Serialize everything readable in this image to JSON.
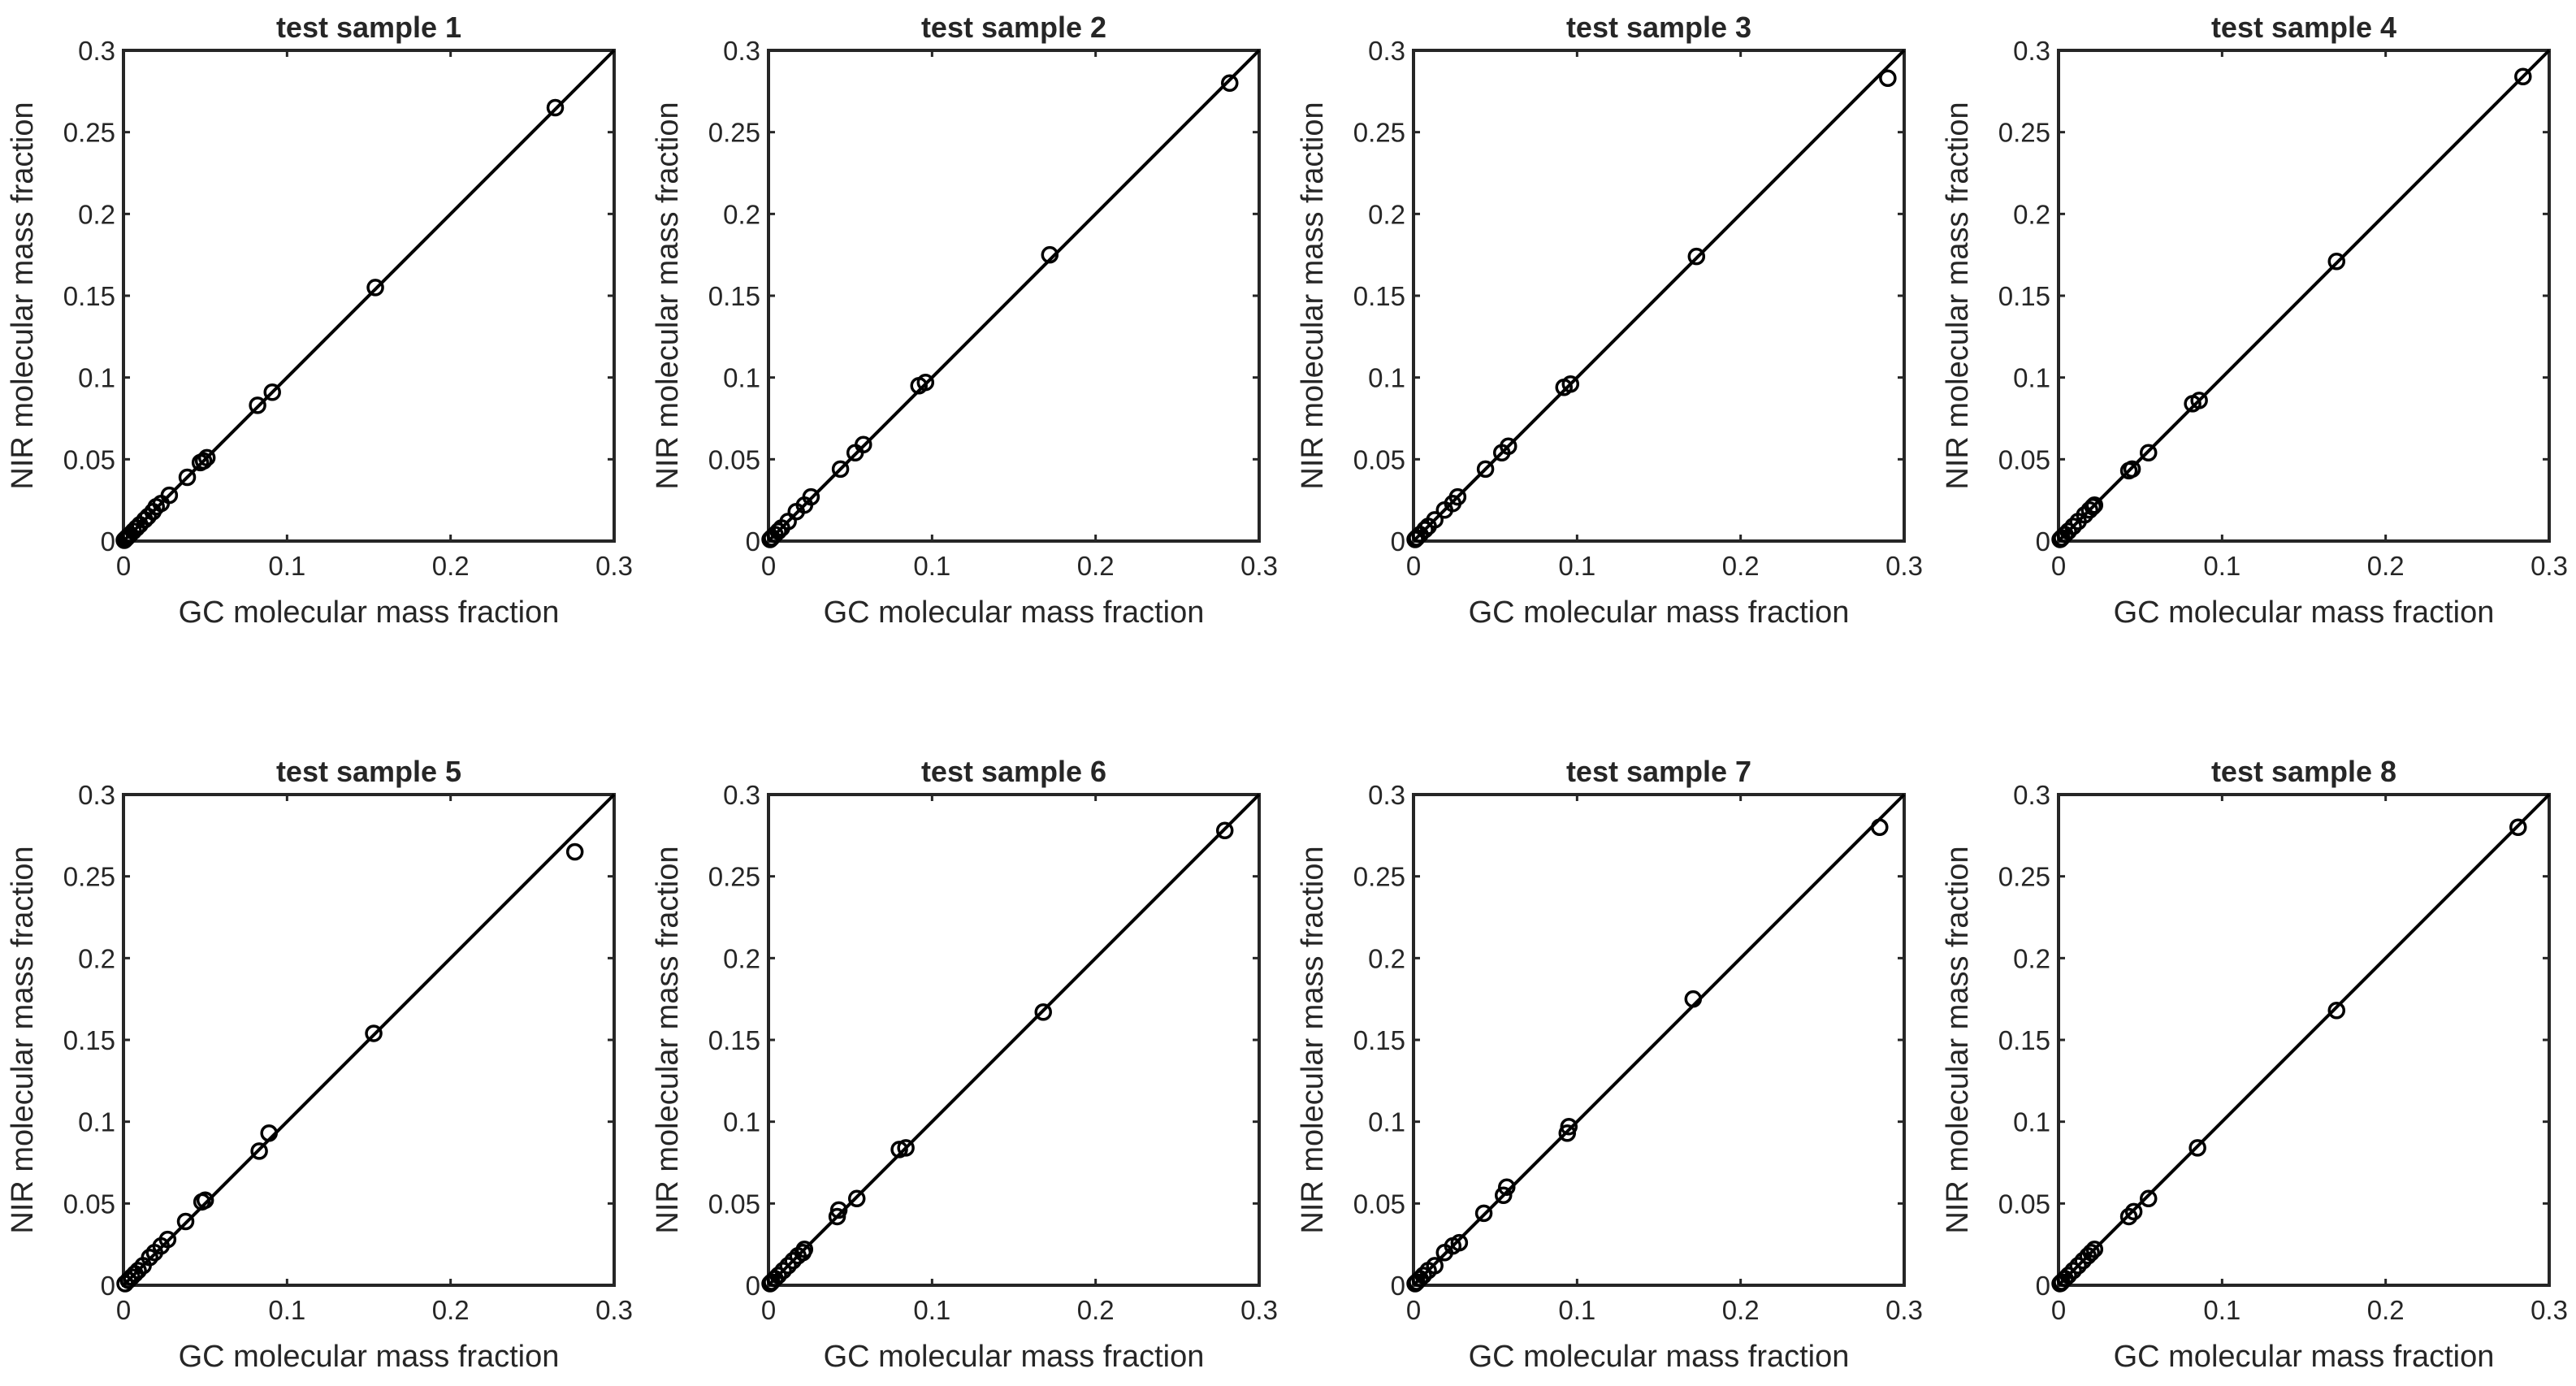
{
  "chart_data": [
    {
      "type": "scatter",
      "title": "test sample 1",
      "xlabel": "GC molecular mass fraction",
      "ylabel": "NIR molecular mass fraction",
      "xlim": [
        0,
        0.3
      ],
      "ylim": [
        0,
        0.3
      ],
      "xticks": [
        "0",
        "0.1",
        "0.2",
        "0.3"
      ],
      "yticks": [
        "0",
        "0.05",
        "0.1",
        "0.15",
        "0.2",
        "0.25",
        "0.3"
      ],
      "reference_line": {
        "x": [
          0,
          0.3
        ],
        "y": [
          0,
          0.3
        ]
      },
      "points": [
        [
          0.264,
          0.265
        ],
        [
          0.154,
          0.155
        ],
        [
          0.091,
          0.091
        ],
        [
          0.082,
          0.083
        ],
        [
          0.051,
          0.051
        ],
        [
          0.049,
          0.049
        ],
        [
          0.047,
          0.048
        ],
        [
          0.039,
          0.039
        ],
        [
          0.028,
          0.028
        ],
        [
          0.023,
          0.023
        ],
        [
          0.02,
          0.021
        ],
        [
          0.018,
          0.018
        ],
        [
          0.015,
          0.015
        ],
        [
          0.013,
          0.013
        ],
        [
          0.01,
          0.01
        ],
        [
          0.008,
          0.008
        ],
        [
          0.006,
          0.006
        ],
        [
          0.004,
          0.004
        ],
        [
          0.003,
          0.003
        ],
        [
          0.002,
          0.002
        ],
        [
          0.001,
          0.001
        ],
        [
          0.0005,
          0.0005
        ]
      ]
    },
    {
      "type": "scatter",
      "title": "test sample 2",
      "xlabel": "GC molecular mass fraction",
      "ylabel": "NIR molecular mass fraction",
      "xlim": [
        0,
        0.3
      ],
      "ylim": [
        0,
        0.3
      ],
      "xticks": [
        "0",
        "0.1",
        "0.2",
        "0.3"
      ],
      "yticks": [
        "0",
        "0.05",
        "0.1",
        "0.15",
        "0.2",
        "0.25",
        "0.3"
      ],
      "reference_line": {
        "x": [
          0,
          0.3
        ],
        "y": [
          0,
          0.3
        ]
      },
      "points": [
        [
          0.282,
          0.28
        ],
        [
          0.172,
          0.175
        ],
        [
          0.096,
          0.097
        ],
        [
          0.092,
          0.095
        ],
        [
          0.058,
          0.059
        ],
        [
          0.053,
          0.054
        ],
        [
          0.044,
          0.044
        ],
        [
          0.026,
          0.027
        ],
        [
          0.022,
          0.022
        ],
        [
          0.017,
          0.018
        ],
        [
          0.012,
          0.012
        ],
        [
          0.008,
          0.008
        ],
        [
          0.006,
          0.006
        ],
        [
          0.004,
          0.004
        ],
        [
          0.002,
          0.002
        ],
        [
          0.001,
          0.001
        ]
      ]
    },
    {
      "type": "scatter",
      "title": "test sample 3",
      "xlabel": "GC molecular mass fraction",
      "ylabel": "NIR molecular mass fraction",
      "xlim": [
        0,
        0.3
      ],
      "ylim": [
        0,
        0.3
      ],
      "xticks": [
        "0",
        "0.1",
        "0.2",
        "0.3"
      ],
      "yticks": [
        "0",
        "0.05",
        "0.1",
        "0.15",
        "0.2",
        "0.25",
        "0.3"
      ],
      "reference_line": {
        "x": [
          0,
          0.3
        ],
        "y": [
          0,
          0.3
        ]
      },
      "points": [
        [
          0.29,
          0.283
        ],
        [
          0.173,
          0.174
        ],
        [
          0.096,
          0.096
        ],
        [
          0.092,
          0.094
        ],
        [
          0.058,
          0.058
        ],
        [
          0.054,
          0.054
        ],
        [
          0.044,
          0.044
        ],
        [
          0.027,
          0.027
        ],
        [
          0.024,
          0.023
        ],
        [
          0.019,
          0.019
        ],
        [
          0.013,
          0.013
        ],
        [
          0.009,
          0.009
        ],
        [
          0.007,
          0.007
        ],
        [
          0.004,
          0.004
        ],
        [
          0.002,
          0.002
        ],
        [
          0.001,
          0.001
        ]
      ]
    },
    {
      "type": "scatter",
      "title": "test sample 4",
      "xlabel": "GC molecular mass fraction",
      "ylabel": "NIR molecular mass fraction",
      "xlim": [
        0,
        0.3
      ],
      "ylim": [
        0,
        0.3
      ],
      "xticks": [
        "0",
        "0.1",
        "0.2",
        "0.3"
      ],
      "yticks": [
        "0",
        "0.05",
        "0.1",
        "0.15",
        "0.2",
        "0.25",
        "0.3"
      ],
      "reference_line": {
        "x": [
          0,
          0.3
        ],
        "y": [
          0,
          0.3
        ]
      },
      "points": [
        [
          0.284,
          0.284
        ],
        [
          0.17,
          0.171
        ],
        [
          0.086,
          0.086
        ],
        [
          0.082,
          0.084
        ],
        [
          0.055,
          0.054
        ],
        [
          0.045,
          0.044
        ],
        [
          0.043,
          0.043
        ],
        [
          0.022,
          0.022
        ],
        [
          0.021,
          0.021
        ],
        [
          0.019,
          0.019
        ],
        [
          0.016,
          0.016
        ],
        [
          0.012,
          0.012
        ],
        [
          0.009,
          0.009
        ],
        [
          0.006,
          0.006
        ],
        [
          0.004,
          0.004
        ],
        [
          0.002,
          0.002
        ],
        [
          0.001,
          0.001
        ]
      ]
    },
    {
      "type": "scatter",
      "title": "test sample 5",
      "xlabel": "GC molecular mass fraction",
      "ylabel": "NIR molecular mass fraction",
      "xlim": [
        0,
        0.3
      ],
      "ylim": [
        0,
        0.3
      ],
      "xticks": [
        "0",
        "0.1",
        "0.2",
        "0.3"
      ],
      "yticks": [
        "0",
        "0.05",
        "0.1",
        "0.15",
        "0.2",
        "0.25",
        "0.3"
      ],
      "reference_line": {
        "x": [
          0,
          0.3
        ],
        "y": [
          0,
          0.3
        ]
      },
      "points": [
        [
          0.276,
          0.265
        ],
        [
          0.153,
          0.154
        ],
        [
          0.089,
          0.093
        ],
        [
          0.083,
          0.082
        ],
        [
          0.05,
          0.052
        ],
        [
          0.048,
          0.051
        ],
        [
          0.038,
          0.039
        ],
        [
          0.027,
          0.028
        ],
        [
          0.023,
          0.024
        ],
        [
          0.019,
          0.02
        ],
        [
          0.016,
          0.017
        ],
        [
          0.012,
          0.012
        ],
        [
          0.009,
          0.009
        ],
        [
          0.007,
          0.007
        ],
        [
          0.005,
          0.005
        ],
        [
          0.003,
          0.003
        ],
        [
          0.001,
          0.001
        ]
      ]
    },
    {
      "type": "scatter",
      "title": "test sample 6",
      "xlabel": "GC molecular mass fraction",
      "ylabel": "NIR molecular mass fraction",
      "xlim": [
        0,
        0.3
      ],
      "ylim": [
        0,
        0.3
      ],
      "xticks": [
        "0",
        "0.1",
        "0.2",
        "0.3"
      ],
      "yticks": [
        "0",
        "0.05",
        "0.1",
        "0.15",
        "0.2",
        "0.25",
        "0.3"
      ],
      "reference_line": {
        "x": [
          0,
          0.3
        ],
        "y": [
          0,
          0.3
        ]
      },
      "points": [
        [
          0.279,
          0.278
        ],
        [
          0.168,
          0.167
        ],
        [
          0.084,
          0.084
        ],
        [
          0.08,
          0.083
        ],
        [
          0.054,
          0.053
        ],
        [
          0.043,
          0.046
        ],
        [
          0.042,
          0.042
        ],
        [
          0.022,
          0.022
        ],
        [
          0.021,
          0.02
        ],
        [
          0.018,
          0.018
        ],
        [
          0.015,
          0.015
        ],
        [
          0.012,
          0.012
        ],
        [
          0.009,
          0.009
        ],
        [
          0.006,
          0.006
        ],
        [
          0.004,
          0.004
        ],
        [
          0.002,
          0.002
        ],
        [
          0.001,
          0.001
        ]
      ]
    },
    {
      "type": "scatter",
      "title": "test sample 7",
      "xlabel": "GC molecular mass fraction",
      "ylabel": "NIR molecular mass fraction",
      "xlim": [
        0,
        0.3
      ],
      "ylim": [
        0,
        0.3
      ],
      "xticks": [
        "0",
        "0.1",
        "0.2",
        "0.3"
      ],
      "yticks": [
        "0",
        "0.05",
        "0.1",
        "0.15",
        "0.2",
        "0.25",
        "0.3"
      ],
      "reference_line": {
        "x": [
          0,
          0.3
        ],
        "y": [
          0,
          0.3
        ]
      },
      "points": [
        [
          0.285,
          0.28
        ],
        [
          0.171,
          0.175
        ],
        [
          0.095,
          0.097
        ],
        [
          0.094,
          0.093
        ],
        [
          0.057,
          0.06
        ],
        [
          0.055,
          0.055
        ],
        [
          0.043,
          0.044
        ],
        [
          0.028,
          0.026
        ],
        [
          0.024,
          0.024
        ],
        [
          0.019,
          0.02
        ],
        [
          0.013,
          0.012
        ],
        [
          0.009,
          0.009
        ],
        [
          0.006,
          0.006
        ],
        [
          0.004,
          0.004
        ],
        [
          0.002,
          0.002
        ],
        [
          0.001,
          0.001
        ]
      ]
    },
    {
      "type": "scatter",
      "title": "test sample 8",
      "xlabel": "GC molecular mass fraction",
      "ylabel": "NIR molecular mass fraction",
      "xlim": [
        0,
        0.3
      ],
      "ylim": [
        0,
        0.3
      ],
      "xticks": [
        "0",
        "0.1",
        "0.2",
        "0.3"
      ],
      "yticks": [
        "0",
        "0.05",
        "0.1",
        "0.15",
        "0.2",
        "0.25",
        "0.3"
      ],
      "reference_line": {
        "x": [
          0,
          0.3
        ],
        "y": [
          0,
          0.3
        ]
      },
      "points": [
        [
          0.281,
          0.28
        ],
        [
          0.17,
          0.168
        ],
        [
          0.085,
          0.084
        ],
        [
          0.055,
          0.053
        ],
        [
          0.046,
          0.045
        ],
        [
          0.043,
          0.042
        ],
        [
          0.022,
          0.022
        ],
        [
          0.02,
          0.02
        ],
        [
          0.018,
          0.018
        ],
        [
          0.015,
          0.015
        ],
        [
          0.012,
          0.012
        ],
        [
          0.009,
          0.009
        ],
        [
          0.006,
          0.006
        ],
        [
          0.004,
          0.004
        ],
        [
          0.002,
          0.002
        ],
        [
          0.001,
          0.001
        ]
      ]
    }
  ]
}
